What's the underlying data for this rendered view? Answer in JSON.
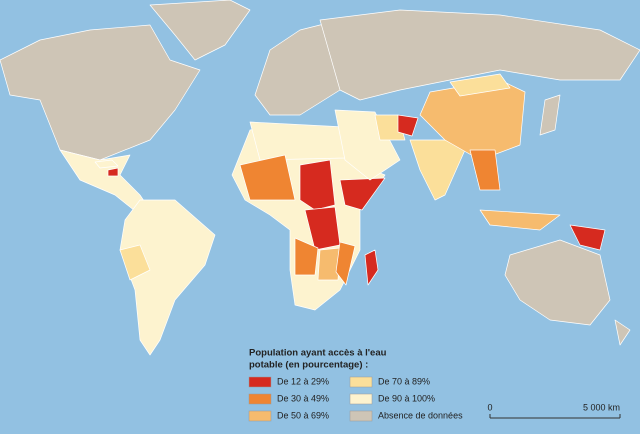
{
  "legend": {
    "title_lines": [
      "Population ayant accès à l'eau",
      "potable (en pourcentage) :"
    ],
    "items": [
      {
        "label": "De 12 à 29%",
        "color": "#d62a1f"
      },
      {
        "label": "De 30 à 49%",
        "color": "#ef8532"
      },
      {
        "label": "De 50 à  69%",
        "color": "#f6bb6e"
      },
      {
        "label": "De 70 à 89%",
        "color": "#fbdf9a"
      },
      {
        "label": "De 90 à 100%",
        "color": "#fdf3cf"
      },
      {
        "label": "Absence de données",
        "color": "#cec5b6"
      }
    ]
  },
  "scale_bar": {
    "start": "0",
    "end": "5 000 km"
  }
}
